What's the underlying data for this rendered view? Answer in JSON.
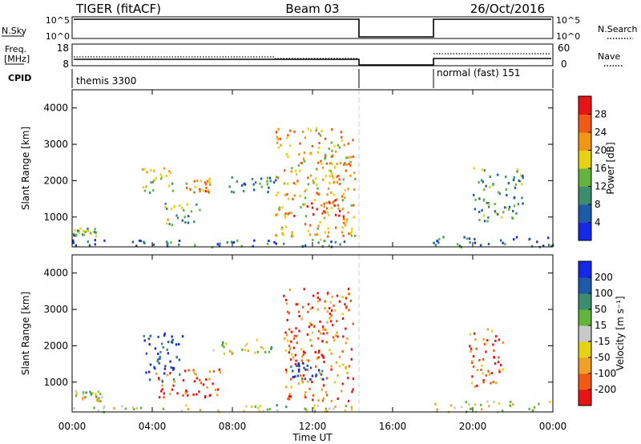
{
  "header": {
    "radar": "TIGER (fitACF)",
    "beam": "Beam 03",
    "date": "26/Oct/2016"
  },
  "panels": {
    "nsky": {
      "label": "N.Sky",
      "ticks": [
        "10^5",
        "10^0"
      ]
    },
    "nsearch": {
      "label": "N.Search",
      "ticks": [
        "10^5",
        "10^0"
      ]
    },
    "freq": {
      "label_line1": "Freq.",
      "label_line2": "[MHz]",
      "ticks": [
        "18",
        "8"
      ]
    },
    "nave": {
      "label": "Nave",
      "ticks": [
        "60",
        "0"
      ]
    },
    "cpid": {
      "label": "CPID",
      "segments": [
        "themis 3300",
        "normal (fast) 151"
      ]
    }
  },
  "chart_data": [
    {
      "type": "heatmap",
      "title": "",
      "xlabel": "Time UT",
      "ylabel": "Slant Range [km]",
      "x_ticks": [
        "00:00",
        "04:00",
        "08:00",
        "12:00",
        "16:00",
        "20:00",
        "00:00"
      ],
      "x_range_hours": [
        0,
        24
      ],
      "y_ticks": [
        1000,
        2000,
        3000,
        4000
      ],
      "y_range_km": [
        180,
        4500
      ],
      "colorbar": {
        "label": "Power [dB]",
        "ticks": [
          "4",
          "8",
          "12",
          "16",
          "20",
          "24",
          "28"
        ],
        "range": [
          0,
          30
        ],
        "colors": [
          "#1428e6",
          "#1e5aaa",
          "#3c8c6e",
          "#64b43c",
          "#e6d214",
          "#f09614",
          "#f05a14",
          "#e61414"
        ]
      },
      "data_gap_hours": [
        14.3,
        18.0
      ],
      "scatter_clusters": [
        {
          "t": [
            0,
            14.2
          ],
          "r": [
            200,
            400
          ],
          "level": 0.2
        },
        {
          "t": [
            0,
            1.2
          ],
          "r": [
            500,
            720
          ],
          "level": 0.4
        },
        {
          "t": [
            3.3,
            5.0
          ],
          "r": [
            1700,
            2400
          ],
          "level": 0.5
        },
        {
          "t": [
            5.5,
            6.9
          ],
          "r": [
            1700,
            2100
          ],
          "level": 0.7
        },
        {
          "t": [
            4.6,
            6.4
          ],
          "r": [
            800,
            1400
          ],
          "level": 0.45
        },
        {
          "t": [
            7.5,
            10.2
          ],
          "r": [
            1700,
            2200
          ],
          "level": 0.3
        },
        {
          "t": [
            10.1,
            14.1
          ],
          "r": [
            400,
            3500
          ],
          "level": 0.65
        },
        {
          "t": [
            11.0,
            13.6
          ],
          "r": [
            1000,
            1500
          ],
          "level": 0.9
        },
        {
          "t": [
            18.0,
            24.0
          ],
          "r": [
            200,
            500
          ],
          "level": 0.2
        },
        {
          "t": [
            20.0,
            22.5
          ],
          "r": [
            900,
            2400
          ],
          "level": 0.35
        }
      ]
    },
    {
      "type": "heatmap",
      "title": "",
      "xlabel": "Time UT",
      "ylabel": "Slant Range [km]",
      "x_ticks": [
        "00:00",
        "04:00",
        "08:00",
        "12:00",
        "16:00",
        "20:00",
        "00:00"
      ],
      "x_range_hours": [
        0,
        24
      ],
      "y_ticks": [
        1000,
        2000,
        3000,
        4000
      ],
      "y_range_km": [
        180,
        4500
      ],
      "colorbar": {
        "label": "Velocity [m s⁻¹]",
        "ticks": [
          "200",
          "100",
          "50",
          "15",
          "-15",
          "-50",
          "-100",
          "-200"
        ],
        "range": [
          -250,
          250
        ],
        "colors": [
          "#e61414",
          "#f05a14",
          "#f0a028",
          "#e6d214",
          "#c8c8c8",
          "#64b43c",
          "#3c8c6e",
          "#1e5aaa",
          "#1428e6"
        ]
      },
      "data_gap_hours": [
        14.3,
        18.0
      ],
      "scatter_clusters": [
        {
          "t": [
            0,
            14.2
          ],
          "r": [
            200,
            400
          ],
          "level": 0.45
        },
        {
          "t": [
            0,
            1.5
          ],
          "r": [
            500,
            800
          ],
          "level": 0.5
        },
        {
          "t": [
            3.5,
            5.5
          ],
          "r": [
            1000,
            2400
          ],
          "level": 0.9
        },
        {
          "t": [
            4.0,
            7.5
          ],
          "r": [
            600,
            1400
          ],
          "level": 0.1
        },
        {
          "t": [
            7.0,
            10.0
          ],
          "r": [
            1800,
            2200
          ],
          "level": 0.5
        },
        {
          "t": [
            10.5,
            14.0
          ],
          "r": [
            500,
            3600
          ],
          "level": 0.15
        },
        {
          "t": [
            10.8,
            12.5
          ],
          "r": [
            1100,
            1600
          ],
          "level": 0.95
        },
        {
          "t": [
            18.0,
            24.0
          ],
          "r": [
            200,
            500
          ],
          "level": 0.45
        },
        {
          "t": [
            19.8,
            21.5
          ],
          "r": [
            900,
            2600
          ],
          "level": 0.15
        }
      ]
    }
  ]
}
